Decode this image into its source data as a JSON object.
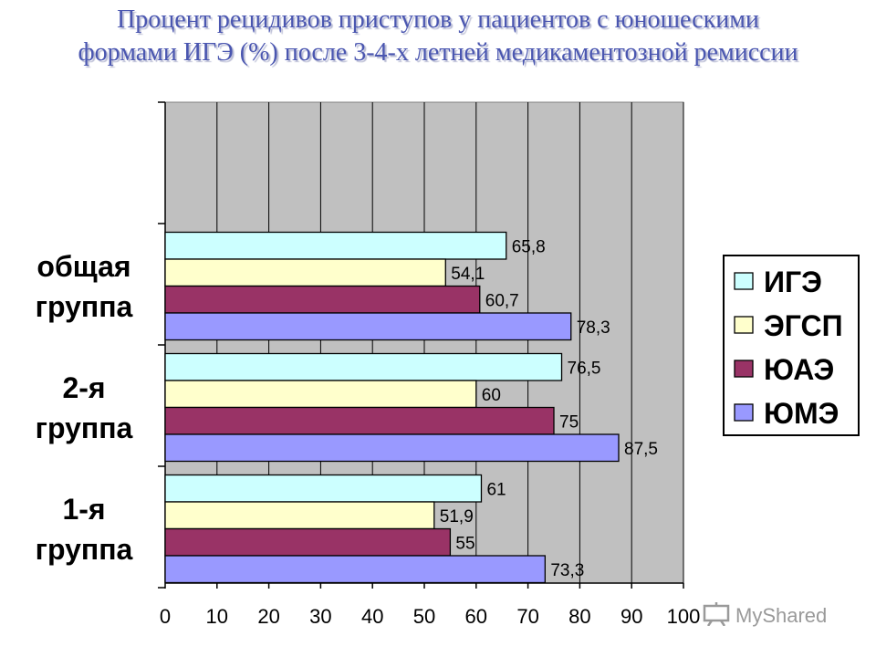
{
  "title_lines": [
    "Процент рецидивов приступов у пациентов с юношескими",
    "формами ИГЭ (%) после 3-4-х летней медикаментозной ремиссии"
  ],
  "watermark": {
    "text": "MyShared",
    "icon": "presentation-board-icon"
  },
  "chart_data": {
    "type": "bar",
    "orientation": "horizontal",
    "title": "Процент рецидивов приступов у пациентов с юношескими формами ИГЭ (%) после 3-4-х летней медикаментозной ремиссии",
    "categories": [
      [
        "общая",
        "группа"
      ],
      [
        "2-я",
        "группа"
      ],
      [
        "1-я",
        "группа"
      ]
    ],
    "series": [
      {
        "name": "ИГЭ",
        "color": "#ccffff",
        "values": [
          65.8,
          76.5,
          61
        ],
        "labels": [
          "65,8",
          "76,5",
          "61"
        ]
      },
      {
        "name": "ЭГСП",
        "color": "#ffffcc",
        "values": [
          54.1,
          60,
          51.9
        ],
        "labels": [
          "54,1",
          "60",
          "51,9"
        ]
      },
      {
        "name": "ЮАЭ",
        "color": "#993366",
        "values": [
          60.7,
          75,
          55
        ],
        "labels": [
          "60,7",
          "75",
          "55"
        ]
      },
      {
        "name": "ЮМЭ",
        "color": "#9999ff",
        "values": [
          78.3,
          87.5,
          73.3
        ],
        "labels": [
          "78,3",
          "87,5",
          "73,3"
        ]
      }
    ],
    "xlim": [
      0,
      100
    ],
    "xticks": [
      0,
      10,
      20,
      30,
      40,
      50,
      60,
      70,
      80,
      90,
      100
    ],
    "xlabel": "",
    "ylabel": "",
    "grid": "vertical",
    "plot_background": "#c0c0c0",
    "legend": "right"
  }
}
